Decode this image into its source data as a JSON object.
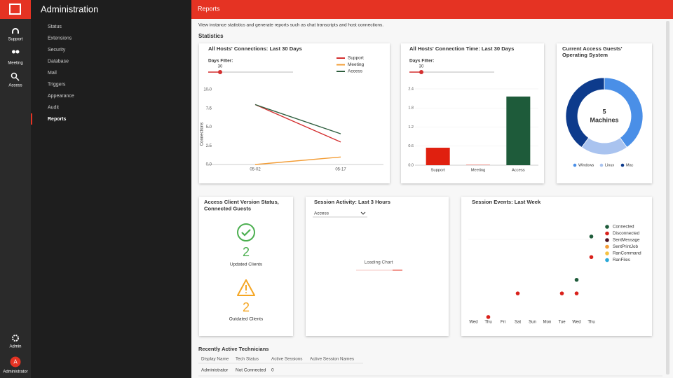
{
  "rail": {
    "items": [
      "Support",
      "Meeting",
      "Access"
    ],
    "admin": "Admin",
    "avatar": "A",
    "user": "Administrator"
  },
  "admin": {
    "title": "Administration",
    "menu": [
      "Status",
      "Extensions",
      "Security",
      "Database",
      "Mail",
      "Triggers",
      "Appearance",
      "Audit",
      "Reports"
    ],
    "active_index": 8
  },
  "header": {
    "title": "Reports",
    "description": "View instance statistics and generate reports such as chat transcripts and host connections.",
    "section": "Statistics"
  },
  "chart_data": [
    {
      "type": "line",
      "title": "All Hosts' Connections: Last 30 Days",
      "filter_label": "Days Filter:",
      "filter_value": 30,
      "y_label": "Connections",
      "categories": [
        "05-02",
        "05-17"
      ],
      "series": [
        {
          "name": "Support",
          "color": "#d32f2f",
          "values": [
            8,
            3
          ]
        },
        {
          "name": "Meeting",
          "color": "#f39c34",
          "values": [
            0,
            1
          ]
        },
        {
          "name": "Access",
          "color": "#2e5e3e",
          "values": [
            8,
            4.1
          ]
        }
      ],
      "ylim": [
        0,
        10
      ],
      "yticks": [
        {
          "value": 0,
          "label": "0.0"
        },
        2.5,
        {
          "value": 5,
          "label": "5.0"
        },
        7.5,
        {
          "value": 10,
          "label": "10.0"
        }
      ],
      "grid": false
    },
    {
      "type": "bar",
      "title": "All Hosts' Connection Time: Last 30 Days",
      "filter_label": "Days Filter:",
      "filter_value": 30,
      "categories": [
        "Support",
        "Meeting",
        "Access"
      ],
      "values": [
        0.55,
        0.01,
        2.16
      ],
      "colors": [
        "#e0200f",
        "#e0200f",
        "#1e5b3a"
      ],
      "ylim": [
        0,
        2.4
      ],
      "yticks": [
        {
          "value": 0,
          "label": "0.0"
        },
        0.6,
        1.2,
        1.8,
        2.4
      ],
      "grid": true
    },
    {
      "type": "donut",
      "title": "Current Access Guests' Operating System",
      "center_value": 5,
      "center_label": "Machines",
      "categories": [
        "Windows",
        "Linux",
        "Mac"
      ],
      "values": [
        2,
        1,
        2
      ],
      "colors": [
        "#4a8fe7",
        "#a9c3ef",
        "#0d3b8c"
      ]
    },
    {
      "type": "scatter",
      "title": "Session Events: Last Week",
      "categories": [
        "Wed",
        "Thu",
        "Fri",
        "Sat",
        "Sun",
        "Mon",
        "Tue",
        "Wed",
        "Thu"
      ],
      "series": [
        {
          "name": "Connected",
          "color": "#1e5b3a",
          "values": [
            null,
            null,
            null,
            null,
            null,
            null,
            null,
            9,
            18.9
          ]
        },
        {
          "name": "Disconnected",
          "color": "#d9211b",
          "values": [
            null,
            0.5,
            null,
            5.9,
            null,
            null,
            5.9,
            5.9,
            14.2
          ]
        },
        {
          "name": "SentMessage",
          "color": "#4a1020",
          "values": [
            null,
            null,
            null,
            null,
            null,
            null,
            null,
            null,
            null
          ]
        },
        {
          "name": "SentPrintJob",
          "color": "#f39c34",
          "values": [
            null,
            null,
            null,
            null,
            null,
            null,
            null,
            null,
            null
          ]
        },
        {
          "name": "RanCommand",
          "color": "#f5c242",
          "values": [
            null,
            null,
            null,
            null,
            null,
            null,
            null,
            null,
            null
          ]
        },
        {
          "name": "RanFiles",
          "color": "#29a8d8",
          "values": [
            null,
            null,
            null,
            null,
            null,
            null,
            null,
            null,
            null
          ]
        }
      ],
      "ylim": [
        0,
        24
      ]
    }
  ],
  "client_status": {
    "title": [
      "Access Client Version Status,",
      "Connected Guests"
    ],
    "updated": 2,
    "updated_label": "Updated Clients",
    "outdated": 2,
    "outdated_label": "Outdated Clients"
  },
  "session_activity": {
    "title": "Session Activity: Last 3 Hours",
    "select": "Access",
    "status": "Loading Chart"
  },
  "technicians": {
    "title": "Recently Active Technicians",
    "columns": [
      "Display Name",
      "Tech Status",
      "Active Sessions",
      "Active Session Names"
    ],
    "rows": [
      [
        "Administrator",
        "Not Connected",
        0
      ]
    ]
  }
}
